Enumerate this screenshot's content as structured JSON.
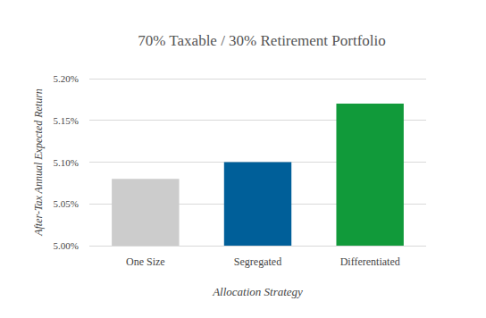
{
  "chart_data": {
    "type": "bar",
    "title": "70% Taxable / 30% Retirement Portfolio",
    "x_label": "Allocation Strategy",
    "y_label": "After-Tax Annual Expected Return",
    "categories": [
      "One Size",
      "Segregated",
      "Differentiated"
    ],
    "values": [
      5.08,
      5.1,
      5.17
    ],
    "colors": [
      "#cccccc",
      "#005f99",
      "#119a3a"
    ],
    "ylim": [
      5.0,
      5.2
    ],
    "yticks": [
      {
        "value": 5.0,
        "label": "5.00%"
      },
      {
        "value": 5.05,
        "label": "5.05%"
      },
      {
        "value": 5.1,
        "label": "5.10%"
      },
      {
        "value": 5.15,
        "label": "5.15%"
      },
      {
        "value": 5.2,
        "label": "5.20%"
      }
    ],
    "grid": true
  }
}
